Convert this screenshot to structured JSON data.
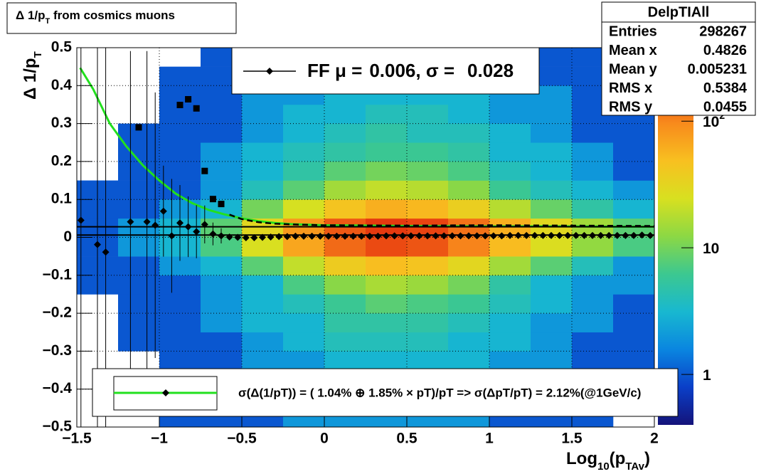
{
  "chart_data": {
    "type": "histogram2d",
    "title": [
      "Δ 1/p",
      "T",
      " from cosmics muons"
    ],
    "x_label": [
      "Log",
      "10",
      "(p",
      "TAv",
      ")"
    ],
    "y_label": [
      "Δ 1/p",
      "T"
    ],
    "xlim": [
      -1.5,
      2
    ],
    "ylim": [
      -0.5,
      0.5
    ],
    "xticks": [
      {
        "value": -1.5,
        "label": "−1.5"
      },
      {
        "value": -1,
        "label": "−1"
      },
      {
        "value": -0.5,
        "label": "−0.5"
      },
      0,
      0.5,
      1,
      1.5,
      2
    ],
    "yticks": [
      {
        "value": -0.5,
        "label": "−0.5"
      },
      {
        "value": -0.4,
        "label": "−0.4"
      },
      {
        "value": -0.3,
        "label": "−0.3"
      },
      {
        "value": -0.2,
        "label": "−0.2"
      },
      {
        "value": -0.1,
        "label": "−0.1"
      },
      0,
      0.1,
      0.2,
      0.3,
      0.4,
      0.5
    ],
    "grid": true,
    "zlim": [
      0.4,
      380
    ],
    "zscale": "log",
    "zticks": [
      1,
      10,
      {
        "value": 100,
        "label": "10",
        "exponent": "2"
      }
    ],
    "colormap": [
      "#14137a",
      "#0a3fc8",
      "#0a86e0",
      "#18b8d0",
      "#3cc890",
      "#8cd844",
      "#d8e020",
      "#f8c020",
      "#f88a1c",
      "#e83c10",
      "#b40808"
    ],
    "xbins": [
      -1.5,
      -1.25,
      -1,
      -0.75,
      -0.5,
      -0.25,
      0,
      0.25,
      0.5,
      0.75,
      1,
      1.25,
      1.5,
      1.75,
      2
    ],
    "ybins": [
      -0.5,
      -0.45,
      -0.4,
      -0.35,
      -0.3,
      -0.25,
      -0.2,
      -0.15,
      -0.1,
      -0.05,
      0,
      0.05,
      0.1,
      0.15,
      0.2,
      0.25,
      0.3,
      0.35,
      0.4,
      0.45,
      0.5
    ],
    "z": [
      [
        0,
        0,
        1,
        1,
        1,
        2,
        2,
        2,
        2,
        2,
        1,
        1,
        1,
        0
      ],
      [
        0,
        0,
        1,
        1,
        1,
        2,
        2,
        2,
        2,
        2,
        2,
        1,
        1,
        1
      ],
      [
        0,
        0,
        1,
        1,
        2,
        2,
        3,
        3,
        3,
        2,
        2,
        1,
        1,
        1
      ],
      [
        0,
        0,
        1,
        1,
        2,
        2,
        3,
        3,
        3,
        3,
        2,
        2,
        1,
        1
      ],
      [
        0,
        1,
        1,
        1,
        2,
        3,
        4,
        4,
        4,
        3,
        3,
        2,
        1,
        1
      ],
      [
        0,
        1,
        1,
        2,
        3,
        3,
        5,
        5,
        5,
        4,
        3,
        2,
        2,
        1
      ],
      [
        0,
        1,
        1,
        2,
        3,
        4,
        6,
        8,
        7,
        6,
        4,
        3,
        2,
        1
      ],
      [
        1,
        1,
        1,
        2,
        3,
        7,
        12,
        16,
        14,
        10,
        5,
        3,
        2,
        2
      ],
      [
        1,
        1,
        2,
        3,
        8,
        20,
        38,
        50,
        45,
        30,
        15,
        8,
        4,
        2
      ],
      [
        1,
        2,
        3,
        7,
        25,
        68,
        128,
        170,
        153,
        102,
        51,
        26,
        13,
        7
      ],
      [
        1,
        2,
        3,
        8,
        30,
        80,
        150,
        200,
        180,
        120,
        60,
        30,
        15,
        8
      ],
      [
        1,
        1,
        2,
        3,
        10,
        24,
        45,
        60,
        54,
        36,
        18,
        9,
        5,
        3
      ],
      [
        1,
        1,
        1,
        2,
        4,
        8,
        15,
        20,
        18,
        12,
        6,
        4,
        3,
        2
      ],
      [
        0,
        1,
        1,
        2,
        3,
        5,
        8,
        10,
        9,
        7,
        4,
        3,
        2,
        1
      ],
      [
        0,
        1,
        1,
        2,
        3,
        4,
        5,
        6,
        6,
        5,
        3,
        3,
        2,
        1
      ],
      [
        0,
        1,
        1,
        1,
        2,
        3,
        4,
        5,
        4,
        4,
        3,
        2,
        1,
        1
      ],
      [
        0,
        0,
        1,
        1,
        2,
        3,
        3,
        4,
        4,
        3,
        2,
        2,
        1,
        1
      ],
      [
        0,
        0,
        1,
        1,
        2,
        2,
        3,
        3,
        3,
        3,
        2,
        2,
        1,
        1
      ],
      [
        0,
        0,
        1,
        1,
        1,
        2,
        2,
        3,
        3,
        2,
        2,
        1,
        1,
        1
      ],
      [
        0,
        0,
        0,
        1,
        1,
        2,
        2,
        2,
        2,
        2,
        1,
        1,
        1,
        0
      ]
    ],
    "mean_points": {
      "color": "#000000",
      "x": [
        -1.475,
        -1.375,
        -1.325,
        -1.175,
        -1.075,
        -1.025,
        -0.975,
        -0.925,
        -0.875,
        -0.825,
        -0.775,
        -0.725,
        -0.675,
        -0.625,
        -0.575,
        -0.525,
        -0.475,
        -0.425,
        -0.375,
        -0.325,
        -0.275,
        -0.225,
        -0.175,
        -0.125,
        -0.075,
        -0.025,
        0.025,
        0.075,
        0.125,
        0.175,
        0.225,
        0.275,
        0.325,
        0.375,
        0.425,
        0.475,
        0.525,
        0.575,
        0.625,
        0.675,
        0.725,
        0.775,
        0.825,
        0.875,
        0.925,
        0.975,
        1.025,
        1.075,
        1.125,
        1.175,
        1.225,
        1.275,
        1.325,
        1.375,
        1.425,
        1.475,
        1.525,
        1.575,
        1.625,
        1.675,
        1.725,
        1.775,
        1.825,
        1.875,
        1.925,
        1.975
      ],
      "values": [
        0.045,
        -0.019,
        -0.039,
        0.041,
        0.041,
        0.032,
        0.069,
        0.004,
        0.038,
        0.028,
        0.015,
        0.034,
        0.009,
        0.004,
        0.001,
        0,
        -0.001,
        -0.001,
        0,
        0.001,
        0.002,
        0.002,
        0.003,
        0.003,
        0.003,
        0.003,
        0.003,
        0.003,
        0.003,
        0.003,
        0.003,
        0.003,
        0.003,
        0.004,
        0.004,
        0.004,
        0.004,
        0.004,
        0.004,
        0.004,
        0.004,
        0.004,
        0.004,
        0.004,
        0.004,
        0.004,
        0.004,
        0.004,
        0.005,
        0.005,
        0.005,
        0.005,
        0.005,
        0.005,
        0.005,
        0.005,
        0.005,
        0.005,
        0.005,
        0.005,
        0.005,
        0.005,
        0.005,
        0.005,
        0.006,
        0.005
      ],
      "errors": [
        0.6,
        0.6,
        0.6,
        0.45,
        0.45,
        0.35,
        0.12,
        0.15,
        0.1,
        0.08,
        0.07,
        0.05,
        0.03,
        0.02,
        0.006,
        0.005,
        0.004,
        0.004,
        0.003,
        0.003,
        0.003,
        0.003,
        0.002,
        0.002,
        0.002,
        0.002,
        0.002,
        0.002,
        0.002,
        0.002,
        0.002,
        0.002,
        0.002,
        0.002,
        0.002,
        0.002,
        0.002,
        0.002,
        0.002,
        0.002,
        0.002,
        0.002,
        0.002,
        0.002,
        0.002,
        0.002,
        0.002,
        0.002,
        0.002,
        0.002,
        0.002,
        0.002,
        0.002,
        0.002,
        0.002,
        0.002,
        0.002,
        0.002,
        0.002,
        0.002,
        0.002,
        0.002,
        0.002,
        0.002,
        0.002,
        0.002
      ]
    },
    "sigma_points": {
      "color": "#000000",
      "x": [
        -1.125,
        -0.875,
        -0.825,
        -0.775,
        -0.725,
        -0.675,
        -0.625
      ],
      "values": [
        0.29,
        0.349,
        0.364,
        0.34,
        0.175,
        0.101,
        0.088
      ]
    },
    "sigma_curve": {
      "color": "#000000",
      "x": [
        -0.575,
        -0.5,
        -0.4,
        -0.3,
        -0.2,
        0,
        0.5,
        1,
        1.5,
        2
      ],
      "values": [
        0.06,
        0.048,
        0.04,
        0.036,
        0.034,
        0.032,
        0.031,
        0.032,
        0.031,
        0.03
      ]
    },
    "fit_curve": {
      "color": "#22e01e",
      "x": [
        -1.48,
        -1.4,
        -1.3,
        -1.2,
        -1.1,
        -1,
        -0.9,
        -0.8,
        -0.7,
        -0.6,
        -0.5,
        -0.4,
        -0.3,
        -0.2,
        0,
        0.5,
        1,
        1.5,
        2
      ],
      "values": [
        0.447,
        0.39,
        0.3,
        0.24,
        0.19,
        0.15,
        0.115,
        0.09,
        0.072,
        0.06,
        0.05,
        0.043,
        0.038,
        0.035,
        0.032,
        0.03,
        0.029,
        0.029,
        0.028
      ]
    },
    "fit_legend": {
      "label": "FF μ =",
      "mu": 0.006,
      "separator": ", σ =",
      "sigma": 0.028
    },
    "resolution_legend": "σ(Δ(1/pT)) = ( 1.04% ⊕  1.85% × pT)/pT => σ(ΔpT/pT) =  2.12%(@1GeV/c)",
    "stats": {
      "name": "DelpTIAll",
      "labels": [
        "Entries",
        "Mean x",
        "Mean y",
        "RMS x",
        "RMS y"
      ],
      "values": [
        298267,
        0.4826,
        0.005231,
        0.5384,
        0.0455
      ]
    }
  }
}
